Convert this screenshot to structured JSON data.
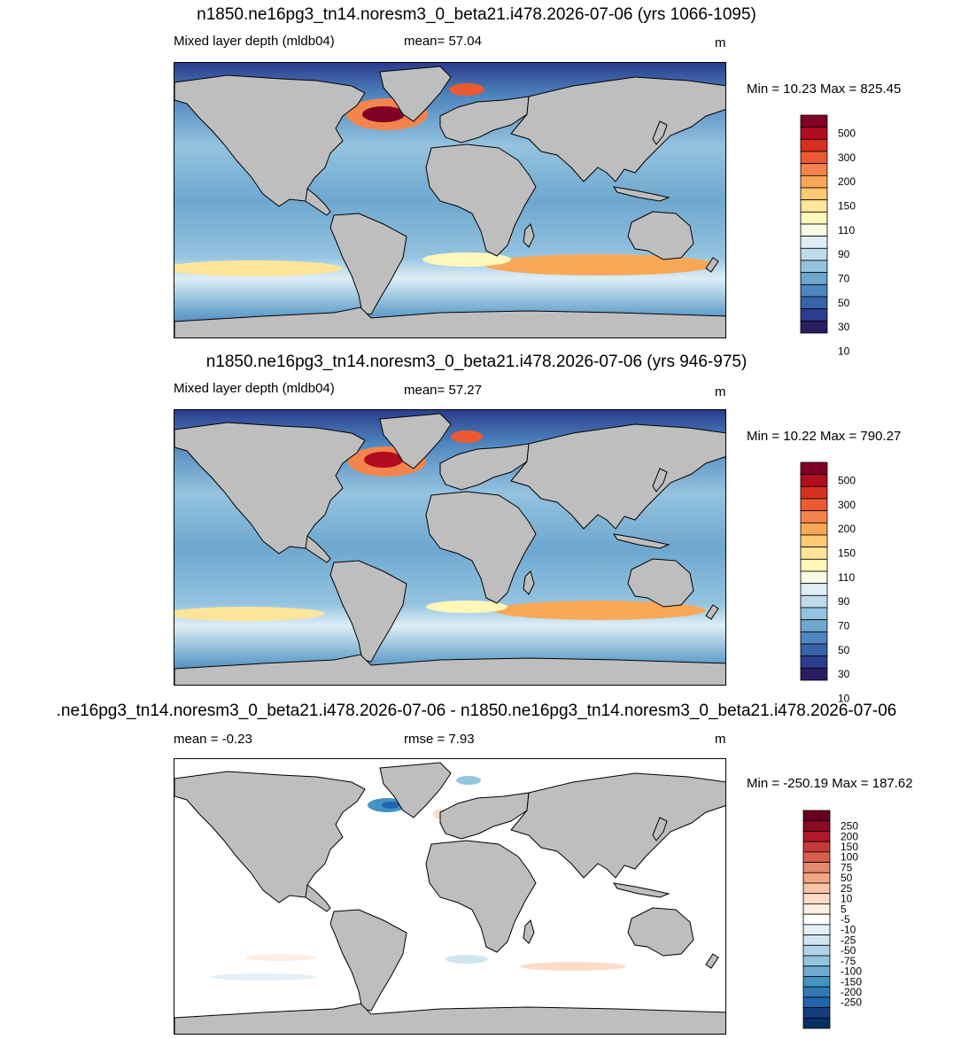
{
  "panels": [
    {
      "title": "n1850.ne16pg3_tn14.noresm3_0_beta21.i478.2026-07-06 (yrs 1066-1095)",
      "left_label": "Mixed layer depth (mldb04)",
      "center_label": "mean=  57.04",
      "units": "m",
      "minmax": "Min =  10.23 Max = 825.45",
      "colorbar": {
        "colors": [
          "#800026",
          "#b10c1f",
          "#d7301f",
          "#ec5a33",
          "#f4844b",
          "#f9a857",
          "#fdc973",
          "#fee59a",
          "#fff6b9",
          "#f6fbe6",
          "#ddeef5",
          "#bcdcec",
          "#94c3df",
          "#6ea7cf",
          "#4f86bf",
          "#3763a8",
          "#2b3d8c",
          "#2c1d63"
        ],
        "labels": [
          "500",
          "300",
          "200",
          "150",
          "110",
          "90",
          "70",
          "50",
          "30",
          "10"
        ]
      }
    },
    {
      "title": "n1850.ne16pg3_tn14.noresm3_0_beta21.i478.2026-07-06 (yrs 946-975)",
      "left_label": "Mixed layer depth (mldb04)",
      "center_label": "mean=  57.27",
      "units": "m",
      "minmax": "Min =  10.22 Max = 790.27",
      "colorbar": {
        "colors": [
          "#800026",
          "#b10c1f",
          "#d7301f",
          "#ec5a33",
          "#f4844b",
          "#f9a857",
          "#fdc973",
          "#fee59a",
          "#fff6b9",
          "#f6fbe6",
          "#ddeef5",
          "#bcdcec",
          "#94c3df",
          "#6ea7cf",
          "#4f86bf",
          "#3763a8",
          "#2b3d8c",
          "#2c1d63"
        ],
        "labels": [
          "500",
          "300",
          "200",
          "150",
          "110",
          "90",
          "70",
          "50",
          "30",
          "10"
        ]
      }
    },
    {
      "title": ".ne16pg3_tn14.noresm3_0_beta21.i478.2026-07-06 - n1850.ne16pg3_tn14.noresm3_0_beta21.i478.2026-07-06",
      "left_label": "mean =  -0.23",
      "center_label": "rmse =   7.93",
      "units": "m",
      "minmax": "Min = -250.19 Max = 187.62",
      "colorbar": {
        "colors": [
          "#67001f",
          "#8b0b24",
          "#b2182b",
          "#c8393a",
          "#d6604d",
          "#e58a6e",
          "#f4a582",
          "#f8c4a6",
          "#fddbc7",
          "#fdeee3",
          "#ffffff",
          "#e6eff6",
          "#d1e5f0",
          "#b3d4e8",
          "#92c5de",
          "#6fabd0",
          "#4393c3",
          "#3079b5",
          "#2166ac",
          "#153d80",
          "#053061"
        ],
        "labels": [
          "250",
          "200",
          "150",
          "100",
          "75",
          "50",
          "25",
          "10",
          "5",
          "-5",
          "-10",
          "-25",
          "-50",
          "-75",
          "-100",
          "-150",
          "-200",
          "-250"
        ]
      }
    }
  ],
  "colors": {
    "land": "#bebebe",
    "coast": "#000000",
    "ocean_mid": "#6ea7cf",
    "ocean_deep": "#3763a8",
    "diff_background": "#ffffff"
  }
}
